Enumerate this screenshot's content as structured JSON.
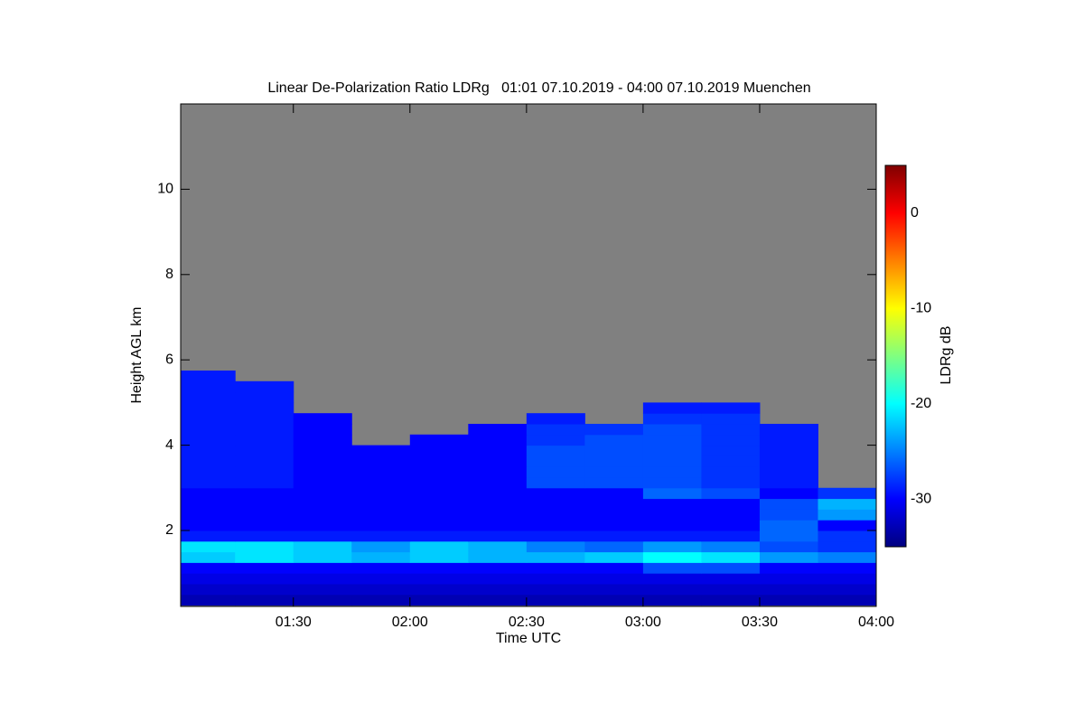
{
  "chart_data": {
    "type": "heatmap",
    "title": "Linear De-Polarization Ratio LDRg   01:01 07.10.2019 - 04:00 07.10.2019 Muenchen",
    "xlabel": "Time UTC",
    "ylabel": "Height AGL km",
    "colorbar_label": "LDRg dB",
    "cmap": "jet",
    "nodata_color": "#808080",
    "clim": [
      -35,
      5
    ],
    "cticks": [
      0,
      -10,
      -20,
      -30
    ],
    "xlim": [
      61,
      240
    ],
    "xticks": [
      {
        "value": 90,
        "label": "01:30"
      },
      {
        "value": 120,
        "label": "02:00"
      },
      {
        "value": 150,
        "label": "02:30"
      },
      {
        "value": 180,
        "label": "03:00"
      },
      {
        "value": 210,
        "label": "03:30"
      },
      {
        "value": 240,
        "label": "04:00"
      }
    ],
    "ylim": [
      0.22,
      12
    ],
    "yticks": [
      2,
      4,
      6,
      8,
      10
    ],
    "x": [
      67.5,
      82.5,
      97.5,
      112.5,
      127.5,
      142.5,
      157.5,
      172.5,
      187.5,
      202.5,
      217.5,
      232.5
    ],
    "y": [
      0.375,
      0.625,
      0.875,
      1.125,
      1.375,
      1.625,
      1.875,
      2.125,
      2.375,
      2.625,
      2.875,
      3.125,
      3.375,
      3.625,
      3.875,
      4.125,
      4.375,
      4.625,
      4.875,
      5.125,
      5.375,
      5.625,
      5.875
    ],
    "values": [
      [
        -33,
        -33,
        -33,
        -33,
        -33,
        -33,
        -33,
        -33,
        -33,
        -33,
        -33,
        -33
      ],
      [
        -32,
        -32,
        -32,
        -32,
        -32,
        -32,
        -32,
        -32,
        -32,
        -32,
        -32,
        -32
      ],
      [
        -31,
        -31,
        -31,
        -31,
        -31,
        -31,
        -31,
        -31,
        -31,
        -31,
        -31,
        -31
      ],
      [
        -30,
        -30,
        -30,
        -30,
        -30,
        -30,
        -30,
        -30,
        -27,
        -27,
        -30,
        -30
      ],
      [
        -22,
        -21,
        -22,
        -23,
        -22,
        -23,
        -23,
        -22,
        -20,
        -21,
        -24,
        -25
      ],
      [
        -21,
        -21,
        -22,
        -24,
        -22,
        -23,
        -25,
        -26,
        -24,
        -25,
        -27,
        -28
      ],
      [
        -29,
        -29,
        -29,
        -29,
        -29,
        -29,
        -29,
        -29,
        -29,
        -29,
        -26,
        -28
      ],
      [
        -30,
        -30,
        -30,
        -30,
        -30,
        -30,
        -30,
        -30,
        -30,
        -30,
        -26,
        -30
      ],
      [
        -30,
        -30,
        -30,
        -30,
        -30,
        -30,
        -30,
        -30,
        -30,
        -30,
        -27,
        -24
      ],
      [
        -30,
        -30,
        -30,
        -30,
        -30,
        -30,
        -30,
        -30,
        -30,
        -30,
        -27,
        -23
      ],
      [
        -30,
        -30,
        -30,
        -30,
        -30,
        -30,
        -30,
        -30,
        -26,
        -27,
        -30,
        -28
      ],
      [
        -29,
        -29,
        -30,
        -30,
        -30,
        -30,
        -27,
        -27,
        -27,
        -28,
        -29,
        null
      ],
      [
        -29,
        -29,
        -30,
        -30,
        -30,
        -30,
        -27,
        -27,
        -27,
        -28,
        -29,
        null
      ],
      [
        -29,
        -29,
        -30,
        -30,
        -30,
        -30,
        -27,
        -27,
        -27,
        -28,
        -29,
        null
      ],
      [
        -29,
        -29,
        -30,
        -30,
        -30,
        -30,
        -27,
        -27,
        -27,
        -28,
        -29,
        null
      ],
      [
        -29,
        -29,
        -30,
        null,
        -30,
        -30,
        -28,
        -27,
        -27,
        -28,
        -29,
        null
      ],
      [
        -29,
        -29,
        -30,
        null,
        null,
        -30,
        -28,
        -28,
        -27,
        -28,
        -29,
        null
      ],
      [
        -29,
        -29,
        -30,
        null,
        null,
        null,
        -29,
        null,
        -28,
        -28,
        null,
        null
      ],
      [
        -29,
        -29,
        null,
        null,
        null,
        null,
        null,
        null,
        -29,
        -29,
        null,
        null
      ],
      [
        -29,
        -29,
        null,
        null,
        null,
        null,
        null,
        null,
        null,
        null,
        null,
        null
      ],
      [
        -29,
        -29,
        null,
        null,
        null,
        null,
        null,
        null,
        null,
        null,
        null,
        null
      ],
      [
        -29,
        null,
        null,
        null,
        null,
        null,
        null,
        null,
        null,
        null,
        null,
        null
      ],
      [
        null,
        null,
        null,
        null,
        null,
        null,
        null,
        null,
        null,
        null,
        null,
        null
      ]
    ]
  }
}
